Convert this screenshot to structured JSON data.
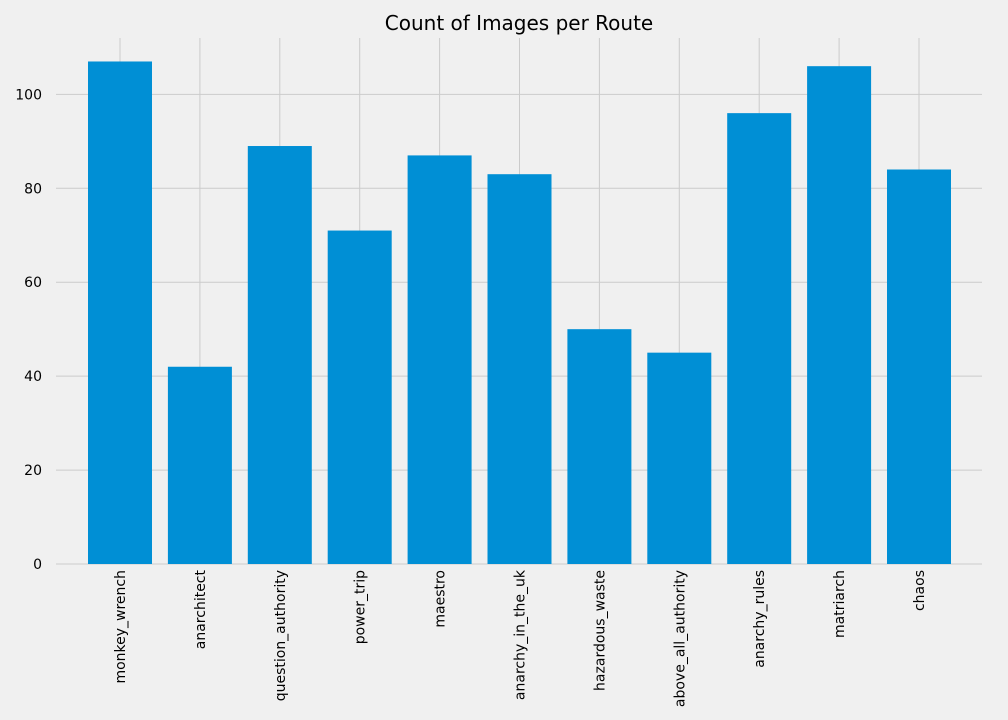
{
  "chart_data": {
    "type": "bar",
    "title": "Count of Images per Route",
    "xlabel": "",
    "ylabel": "",
    "categories": [
      "monkey_wrench",
      "anarchitect",
      "question_authority",
      "power_trip",
      "maestro",
      "anarchy_in_the_uk",
      "hazardous_waste",
      "above_all_authority",
      "anarchy_rules",
      "matriarch",
      "chaos"
    ],
    "values": [
      107,
      42,
      89,
      71,
      87,
      83,
      50,
      45,
      96,
      106,
      84
    ],
    "ylim": [
      0,
      112
    ],
    "yticks": [
      0,
      20,
      40,
      60,
      80,
      100
    ],
    "grid": true,
    "bar_color": "#008fd5",
    "background_color": "#f0f0f0",
    "grid_color": "#cbcbcb"
  }
}
